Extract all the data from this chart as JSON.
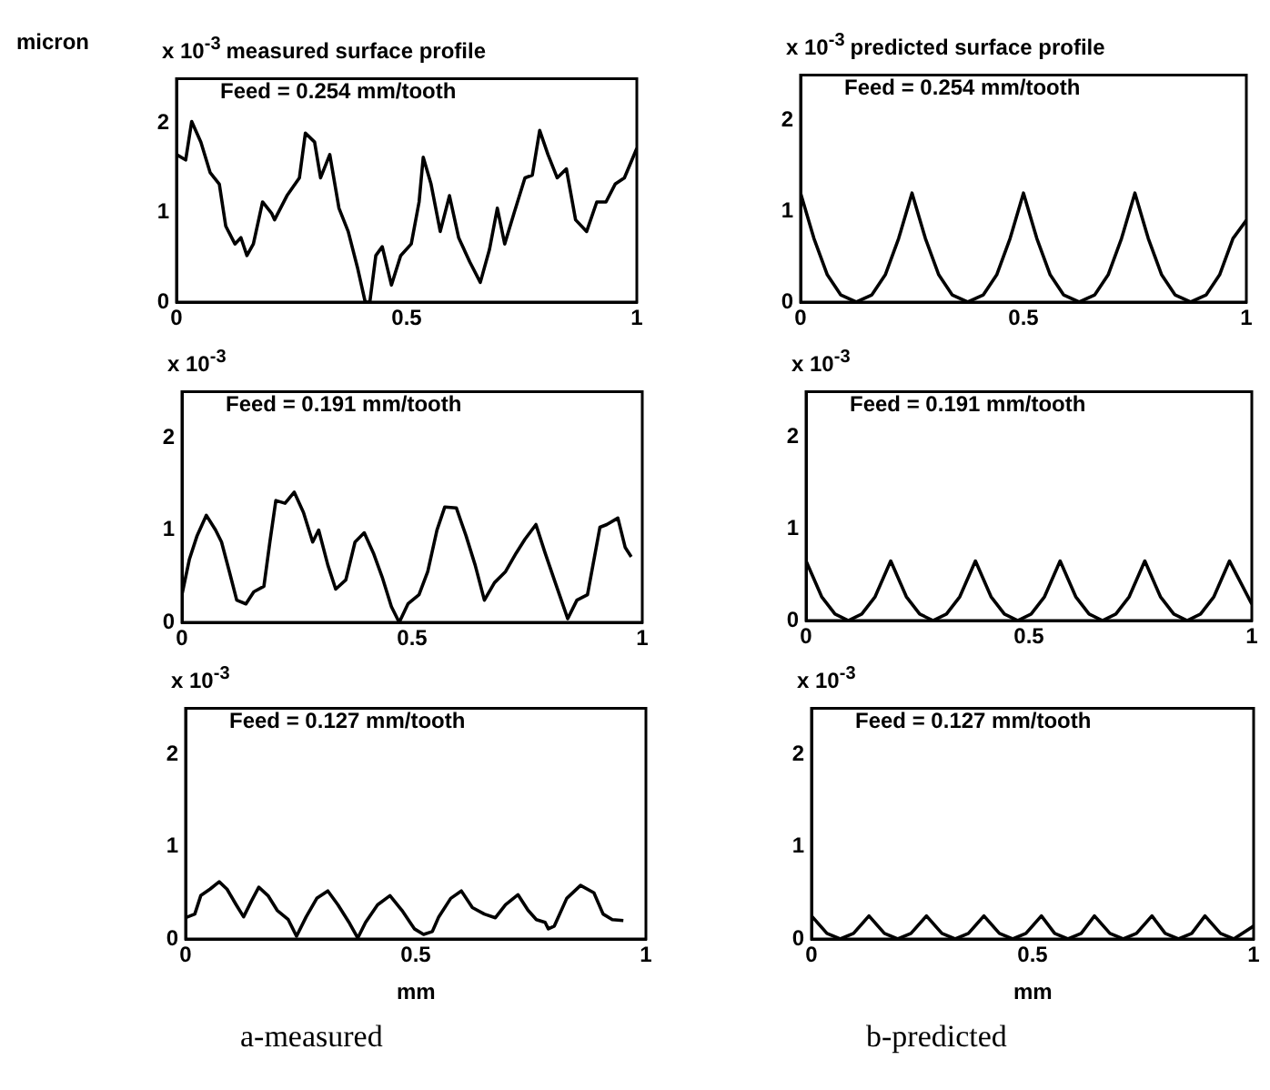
{
  "chart_data": [
    {
      "type": "line",
      "title": "measured surface profile",
      "ylabel": "x 10$^{-3}$",
      "annotations": [
        "Feed = 0.254 mm/tooth",
        "micron"
      ],
      "x": [
        0,
        0.02,
        0.033,
        0.053,
        0.073,
        0.093,
        0.107,
        0.127,
        0.14,
        0.153,
        0.167,
        0.187,
        0.207,
        0.213,
        0.24,
        0.267,
        0.28,
        0.3,
        0.313,
        0.333,
        0.353,
        0.373,
        0.393,
        0.41,
        0.42,
        0.433,
        0.447,
        0.467,
        0.487,
        0.51,
        0.527,
        0.536,
        0.553,
        0.573,
        0.593,
        0.613,
        0.637,
        0.66,
        0.68,
        0.697,
        0.713,
        0.733,
        0.757,
        0.773,
        0.789,
        0.807,
        0.827,
        0.847,
        0.867,
        0.891,
        0.913,
        0.933,
        0.953,
        0.973,
        1
      ],
      "series": [
        {
          "color": "#000000",
          "values": [
            1.65,
            1.59,
            2.02,
            1.79,
            1.45,
            1.32,
            0.85,
            0.65,
            0.72,
            0.52,
            0.65,
            1.12,
            0.99,
            0.92,
            1.19,
            1.39,
            1.89,
            1.79,
            1.39,
            1.65,
            1.05,
            0.79,
            0.39,
            0,
            0,
            0.52,
            0.62,
            0.19,
            0.52,
            0.65,
            1.12,
            1.62,
            1.32,
            0.79,
            1.19,
            0.72,
            0.45,
            0.22,
            0.59,
            1.05,
            0.65,
            0.99,
            1.39,
            1.42,
            1.92,
            1.65,
            1.39,
            1.49,
            0.92,
            0.79,
            1.12,
            1.12,
            1.32,
            1.39,
            1.72
          ]
        }
      ],
      "xlim": [
        0,
        1
      ],
      "ylim": [
        0,
        2.5
      ],
      "xticks": [
        0,
        0.5,
        1
      ],
      "yticks": [
        0,
        1,
        2
      ]
    },
    {
      "type": "line",
      "title": "predicted surface profile",
      "ylabel": "x 10$^{-3}$",
      "annotations": [
        "Feed = 0.254 mm/tooth"
      ],
      "x": [
        0,
        0.03,
        0.06,
        0.09,
        0.125,
        0.16,
        0.19,
        0.22,
        0.25,
        0.28,
        0.31,
        0.34,
        0.375,
        0.41,
        0.44,
        0.47,
        0.5,
        0.53,
        0.56,
        0.59,
        0.625,
        0.66,
        0.69,
        0.72,
        0.75,
        0.78,
        0.81,
        0.84,
        0.875,
        0.91,
        0.94,
        0.97,
        1
      ],
      "series": [
        {
          "color": "#000000",
          "values": [
            1.2,
            0.7,
            0.3,
            0.08,
            0,
            0.08,
            0.3,
            0.7,
            1.2,
            0.7,
            0.3,
            0.08,
            0,
            0.08,
            0.3,
            0.7,
            1.2,
            0.7,
            0.3,
            0.08,
            0,
            0.08,
            0.3,
            0.7,
            1.2,
            0.7,
            0.3,
            0.08,
            0,
            0.08,
            0.3,
            0.7,
            0.9
          ]
        }
      ],
      "xlim": [
        0,
        1
      ],
      "ylim": [
        0,
        2.5
      ],
      "xticks": [
        0,
        0.5,
        1
      ],
      "yticks": [
        0,
        1,
        2
      ]
    },
    {
      "type": "line",
      "ylabel": "x 10$^{-3}$",
      "annotations": [
        "Feed = 0.191 mm/tooth"
      ],
      "x": [
        0,
        0.016,
        0.033,
        0.053,
        0.073,
        0.086,
        0.103,
        0.119,
        0.139,
        0.156,
        0.178,
        0.191,
        0.204,
        0.224,
        0.244,
        0.264,
        0.284,
        0.297,
        0.317,
        0.334,
        0.356,
        0.376,
        0.396,
        0.416,
        0.435,
        0.455,
        0.472,
        0.491,
        0.515,
        0.534,
        0.554,
        0.571,
        0.596,
        0.617,
        0.637,
        0.657,
        0.679,
        0.703,
        0.726,
        0.745,
        0.769,
        0.789,
        0.811,
        0.838,
        0.858,
        0.881,
        0.908,
        0.923,
        0.947,
        0.963,
        0.976
      ],
      "series": [
        {
          "color": "#000000",
          "values": [
            0.3,
            0.68,
            0.94,
            1.16,
            1.0,
            0.87,
            0.55,
            0.24,
            0.2,
            0.33,
            0.39,
            0.87,
            1.32,
            1.29,
            1.41,
            1.19,
            0.87,
            1.0,
            0.62,
            0.36,
            0.46,
            0.87,
            0.97,
            0.75,
            0.49,
            0.17,
            0,
            0.2,
            0.3,
            0.55,
            1.0,
            1.25,
            1.24,
            0.94,
            0.62,
            0.24,
            0.43,
            0.55,
            0.75,
            0.9,
            1.06,
            0.75,
            0.43,
            0.04,
            0.24,
            0.3,
            1.03,
            1.06,
            1.13,
            0.81,
            0.71
          ]
        }
      ],
      "xlim": [
        0,
        1
      ],
      "ylim": [
        0,
        2.5
      ],
      "xticks": [
        0,
        0.5,
        1
      ],
      "yticks": [
        0,
        1,
        2
      ]
    },
    {
      "type": "line",
      "ylabel": "x 10$^{-3}$",
      "annotations": [
        "Feed = 0.191 mm/tooth"
      ],
      "x": [
        0,
        0.035,
        0.065,
        0.095,
        0.125,
        0.155,
        0.19,
        0.225,
        0.255,
        0.285,
        0.315,
        0.345,
        0.38,
        0.415,
        0.445,
        0.475,
        0.505,
        0.535,
        0.57,
        0.605,
        0.635,
        0.665,
        0.695,
        0.725,
        0.76,
        0.795,
        0.825,
        0.855,
        0.885,
        0.915,
        0.95,
        1
      ],
      "series": [
        {
          "color": "#000000",
          "values": [
            0.65,
            0.26,
            0.07,
            0,
            0.07,
            0.26,
            0.65,
            0.26,
            0.07,
            0,
            0.07,
            0.26,
            0.65,
            0.26,
            0.07,
            0,
            0.07,
            0.26,
            0.65,
            0.26,
            0.07,
            0,
            0.07,
            0.26,
            0.65,
            0.26,
            0.07,
            0,
            0.07,
            0.26,
            0.65,
            0.18
          ]
        }
      ],
      "xlim": [
        0,
        1
      ],
      "ylim": [
        0,
        2.5
      ],
      "xticks": [
        0,
        0.5,
        1
      ],
      "yticks": [
        0,
        1,
        2
      ]
    },
    {
      "type": "line",
      "ylabel": "x 10$^{-3}$",
      "xlabel": "mm",
      "annotations": [
        "Feed = 0.127 mm/tooth",
        "a-measured"
      ],
      "x": [
        0,
        0.02,
        0.033,
        0.053,
        0.073,
        0.09,
        0.11,
        0.126,
        0.143,
        0.159,
        0.179,
        0.199,
        0.223,
        0.241,
        0.262,
        0.285,
        0.309,
        0.331,
        0.355,
        0.374,
        0.391,
        0.417,
        0.444,
        0.47,
        0.497,
        0.517,
        0.536,
        0.55,
        0.576,
        0.599,
        0.623,
        0.649,
        0.673,
        0.695,
        0.722,
        0.744,
        0.762,
        0.781,
        0.788,
        0.801,
        0.828,
        0.858,
        0.887,
        0.907,
        0.927,
        0.951
      ],
      "series": [
        {
          "color": "#000000",
          "values": [
            0.23,
            0.27,
            0.47,
            0.54,
            0.62,
            0.54,
            0.37,
            0.24,
            0.41,
            0.56,
            0.47,
            0.31,
            0.21,
            0.03,
            0.24,
            0.44,
            0.52,
            0.37,
            0.18,
            0.01,
            0.18,
            0.37,
            0.47,
            0.31,
            0.11,
            0.05,
            0.08,
            0.24,
            0.44,
            0.52,
            0.34,
            0.27,
            0.23,
            0.37,
            0.48,
            0.31,
            0.21,
            0.18,
            0.11,
            0.14,
            0.44,
            0.58,
            0.5,
            0.27,
            0.21,
            0.2
          ]
        }
      ],
      "xlim": [
        0,
        1
      ],
      "ylim": [
        0,
        2.5
      ],
      "xticks": [
        0,
        0.5,
        1
      ],
      "yticks": [
        0,
        1,
        2
      ]
    },
    {
      "type": "line",
      "ylabel": "x 10$^{-3}$",
      "xlabel": "mm",
      "annotations": [
        "Feed = 0.127 mm/tooth",
        "b-predicted"
      ],
      "x": [
        0,
        0.035,
        0.065,
        0.095,
        0.13,
        0.165,
        0.195,
        0.225,
        0.26,
        0.295,
        0.325,
        0.355,
        0.39,
        0.425,
        0.455,
        0.485,
        0.52,
        0.55,
        0.58,
        0.61,
        0.64,
        0.675,
        0.705,
        0.735,
        0.77,
        0.8,
        0.83,
        0.86,
        0.89,
        0.925,
        0.955,
        1
      ],
      "series": [
        {
          "color": "#000000",
          "values": [
            0.25,
            0.06,
            0,
            0.06,
            0.25,
            0.06,
            0,
            0.06,
            0.25,
            0.06,
            0,
            0.06,
            0.25,
            0.06,
            0,
            0.06,
            0.25,
            0.06,
            0,
            0.06,
            0.25,
            0.06,
            0,
            0.06,
            0.25,
            0.06,
            0,
            0.06,
            0.25,
            0.06,
            0,
            0.14
          ]
        }
      ],
      "xlim": [
        0,
        1
      ],
      "ylim": [
        0,
        2.5
      ],
      "xticks": [
        0,
        0.5,
        1
      ],
      "yticks": [
        0,
        1,
        2
      ]
    }
  ]
}
